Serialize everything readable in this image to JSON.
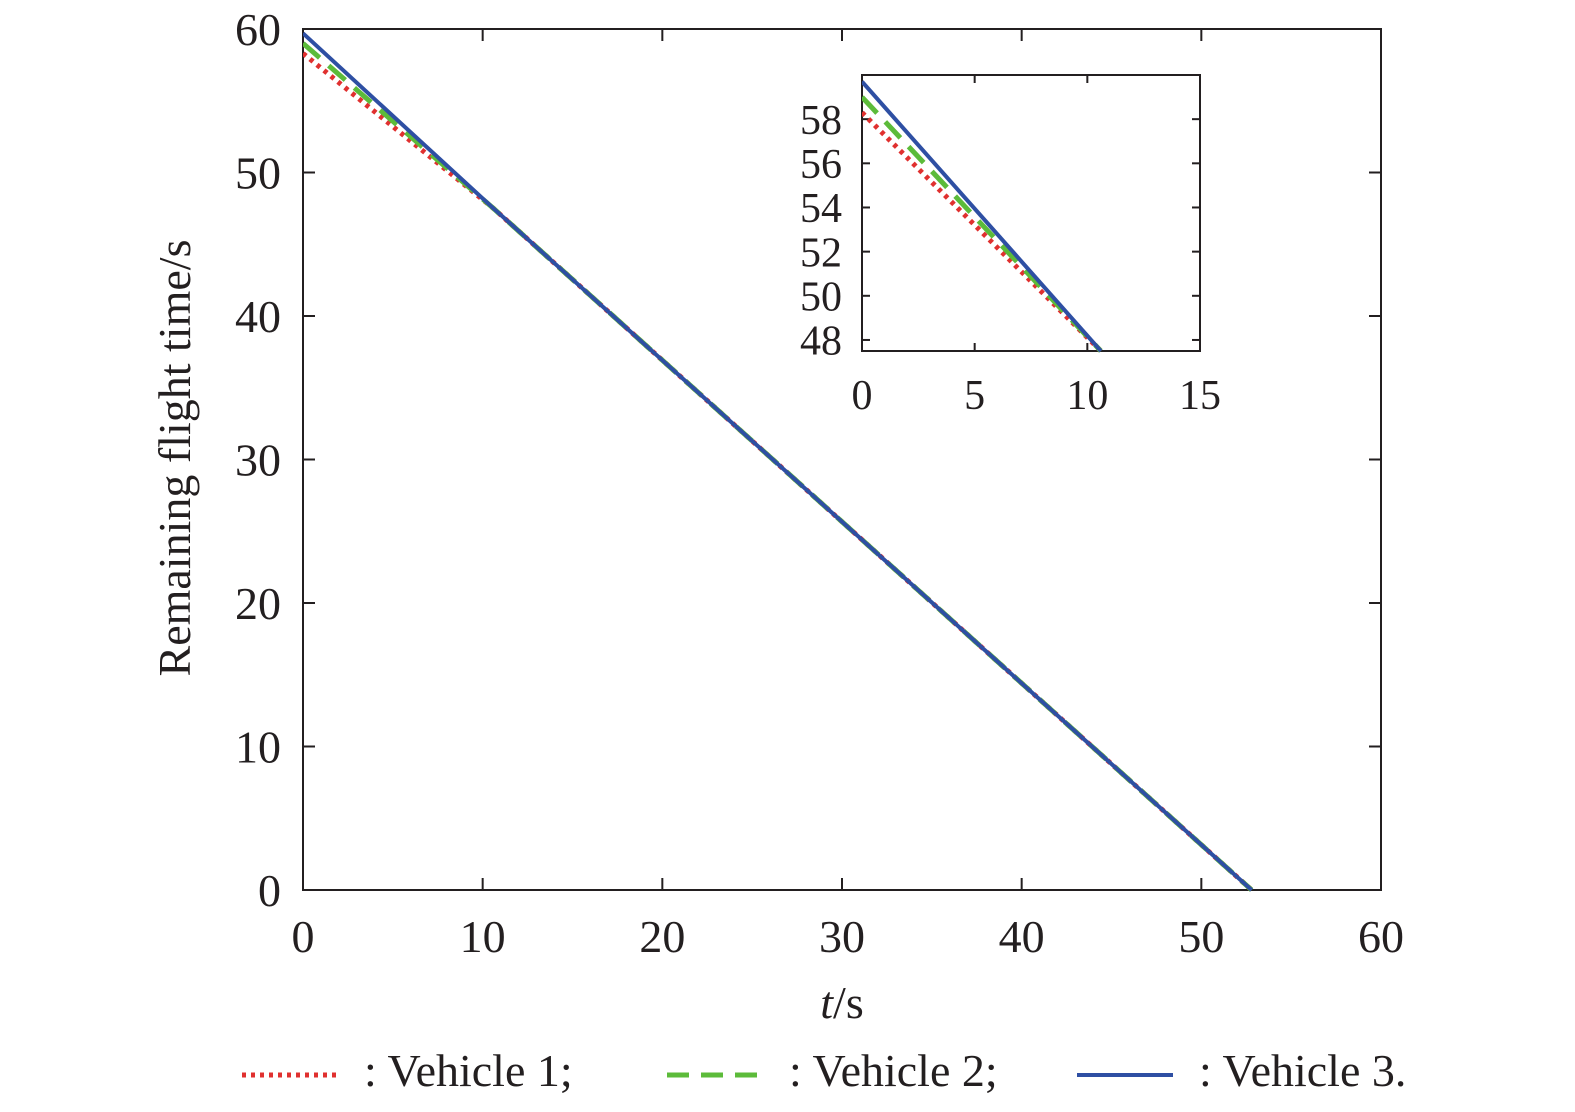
{
  "chart_data": [
    {
      "type": "line",
      "xlabel_italic": "t",
      "xlabel_unit": "/s",
      "ylabel": "Remaining flight time/s",
      "xlim": [
        0,
        60
      ],
      "ylim": [
        0,
        60
      ],
      "xticks": [
        0,
        10,
        20,
        30,
        40,
        50,
        60
      ],
      "yticks": [
        0,
        10,
        20,
        30,
        40,
        50,
        60
      ],
      "grid": false,
      "series": [
        {
          "name": "Vehicle 1",
          "color": "#e0302f",
          "style": "dotted",
          "x": [
            0,
            10.6,
            52.8
          ],
          "y": [
            58.3,
            47.5,
            0
          ]
        },
        {
          "name": "Vehicle 2",
          "color": "#5cbb3a",
          "style": "dashed",
          "x": [
            0,
            10.6,
            52.8
          ],
          "y": [
            59.0,
            47.5,
            0
          ]
        },
        {
          "name": "Vehicle 3",
          "color": "#2e4fa3",
          "style": "solid",
          "x": [
            0,
            10.6,
            52.8
          ],
          "y": [
            59.7,
            47.5,
            0
          ]
        }
      ]
    },
    {
      "type": "line",
      "xlim": [
        0,
        15
      ],
      "ylim": [
        47.5,
        60
      ],
      "xticks": [
        0,
        5,
        10,
        15
      ],
      "yticks": [
        48,
        50,
        52,
        54,
        56,
        58
      ],
      "grid": false,
      "series": [
        {
          "name": "Vehicle 1",
          "color": "#e0302f",
          "style": "dotted",
          "x": [
            0,
            10.6
          ],
          "y": [
            58.3,
            47.5
          ]
        },
        {
          "name": "Vehicle 2",
          "color": "#5cbb3a",
          "style": "dashed",
          "x": [
            0,
            10.6
          ],
          "y": [
            59.0,
            47.5
          ]
        },
        {
          "name": "Vehicle 3",
          "color": "#2e4fa3",
          "style": "solid",
          "x": [
            0,
            10.6
          ],
          "y": [
            59.7,
            47.5
          ]
        }
      ]
    }
  ],
  "legend": {
    "placement": "bottom",
    "items": [
      {
        "label": ": Vehicle 1;",
        "color": "#e0302f",
        "style": "dotted"
      },
      {
        "label": ": Vehicle 2;",
        "color": "#5cbb3a",
        "style": "dashed"
      },
      {
        "label": ": Vehicle 3.",
        "color": "#2e4fa3",
        "style": "solid"
      }
    ]
  }
}
